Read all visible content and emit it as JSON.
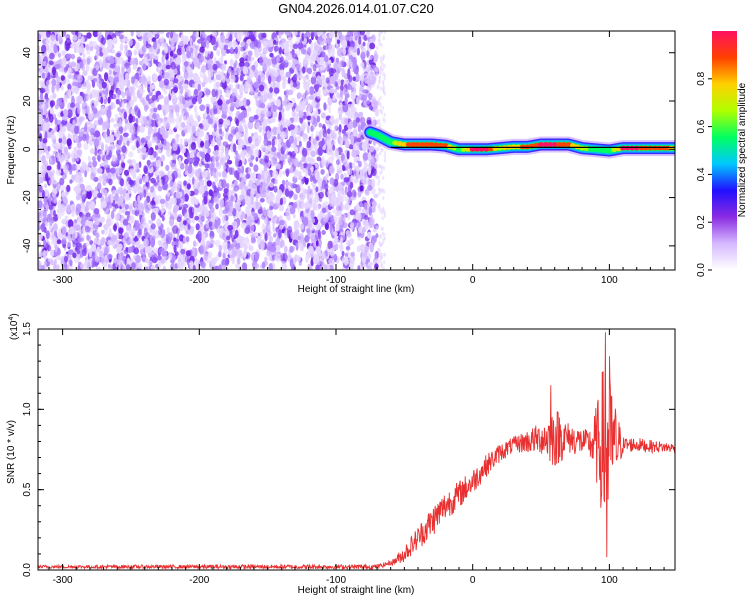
{
  "figure": {
    "title": "GN04.2026.014.01.07.C20"
  },
  "chart_data": [
    {
      "type": "heatmap",
      "name": "spectrogram",
      "xlabel": "Height of straight line (km)",
      "ylabel": "Frequency (Hz)",
      "xlim": [
        -318,
        148
      ],
      "ylim": [
        -50,
        49
      ],
      "xticks": [
        -300,
        -200,
        -100,
        0,
        100
      ],
      "yticks": [
        -40,
        -20,
        0,
        20,
        40
      ],
      "noise_region": {
        "x_range": [
          -318,
          -70
        ],
        "y_range": [
          -50,
          49
        ],
        "dominant_amplitude": [
          0.0,
          0.2
        ]
      },
      "signal_band": [
        {
          "x": -75,
          "y": 7,
          "amplitude": 0.55
        },
        {
          "x": -70,
          "y": 6,
          "amplitude": 0.5
        },
        {
          "x": -60,
          "y": 3,
          "amplitude": 0.6
        },
        {
          "x": -50,
          "y": 2,
          "amplitude": 0.8
        },
        {
          "x": -40,
          "y": 2,
          "amplitude": 0.9
        },
        {
          "x": -30,
          "y": 2,
          "amplitude": 0.85
        },
        {
          "x": -20,
          "y": 1.5,
          "amplitude": 0.9
        },
        {
          "x": -10,
          "y": 0,
          "amplitude": 0.6
        },
        {
          "x": 0,
          "y": 0,
          "amplitude": 0.95
        },
        {
          "x": 10,
          "y": 0,
          "amplitude": 0.95
        },
        {
          "x": 20,
          "y": 0.5,
          "amplitude": 0.7
        },
        {
          "x": 30,
          "y": 1,
          "amplitude": 0.8
        },
        {
          "x": 40,
          "y": 1,
          "amplitude": 0.85
        },
        {
          "x": 50,
          "y": 2,
          "amplitude": 0.95
        },
        {
          "x": 60,
          "y": 2,
          "amplitude": 0.95
        },
        {
          "x": 70,
          "y": 2,
          "amplitude": 0.85
        },
        {
          "x": 80,
          "y": 0.5,
          "amplitude": 0.7
        },
        {
          "x": 90,
          "y": 0,
          "amplitude": 0.5
        },
        {
          "x": 100,
          "y": -0.5,
          "amplitude": 0.6
        },
        {
          "x": 110,
          "y": 0.5,
          "amplitude": 0.95
        },
        {
          "x": 120,
          "y": 0.5,
          "amplitude": 0.95
        },
        {
          "x": 130,
          "y": 0.5,
          "amplitude": 0.9
        },
        {
          "x": 140,
          "y": 0.5,
          "amplitude": 0.85
        },
        {
          "x": 148,
          "y": 0.5,
          "amplitude": 0.8
        }
      ],
      "reference_line_y": 0.8
    },
    {
      "type": "colorbar",
      "name": "colorbar",
      "label": "Normalized spectral amplitude",
      "range": [
        0.0,
        1.0
      ],
      "ticks": [
        0.0,
        0.2,
        0.4,
        0.6,
        0.8
      ],
      "tick_labels": [
        "0.0",
        "0.2",
        "0.4",
        "0.6",
        "0.8"
      ],
      "colors": [
        "#ffffff",
        "#d5b8ff",
        "#8a2be2",
        "#2010ff",
        "#00c8ff",
        "#00ff60",
        "#b0ff00",
        "#ffd000",
        "#ff4000",
        "#ff1060"
      ]
    },
    {
      "type": "line",
      "name": "snr",
      "xlabel": "Height of straight line (km)",
      "ylabel": "SNR (10 * v/v)",
      "multiplier_label": "(x10",
      "multiplier_exp": "4",
      "multiplier_close": ")",
      "xlim": [
        -318,
        148
      ],
      "ylim": [
        0,
        1.5
      ],
      "xticks": [
        -300,
        -200,
        -100,
        0,
        100
      ],
      "yticks": [
        0.0,
        0.5,
        1.0,
        1.5
      ],
      "ytick_labels": [
        "0.0",
        "0.5",
        "1.0",
        "1.5"
      ],
      "series": [
        {
          "name": "SNR",
          "color": "#e83030",
          "envelope": [
            {
              "x": -318,
              "y": 0.02
            },
            {
              "x": -100,
              "y": 0.02
            },
            {
              "x": -70,
              "y": 0.02
            },
            {
              "x": -58,
              "y": 0.05
            },
            {
              "x": -50,
              "y": 0.1
            },
            {
              "x": -40,
              "y": 0.2
            },
            {
              "x": -30,
              "y": 0.3
            },
            {
              "x": -20,
              "y": 0.4
            },
            {
              "x": -10,
              "y": 0.47
            },
            {
              "x": 0,
              "y": 0.55
            },
            {
              "x": 10,
              "y": 0.65
            },
            {
              "x": 20,
              "y": 0.73
            },
            {
              "x": 30,
              "y": 0.78
            },
            {
              "x": 40,
              "y": 0.8
            },
            {
              "x": 50,
              "y": 0.82
            },
            {
              "x": 60,
              "y": 0.83
            },
            {
              "x": 70,
              "y": 0.82
            },
            {
              "x": 80,
              "y": 0.8
            },
            {
              "x": 90,
              "y": 0.78
            },
            {
              "x": 100,
              "y": 0.78
            },
            {
              "x": 110,
              "y": 0.78
            },
            {
              "x": 120,
              "y": 0.78
            },
            {
              "x": 130,
              "y": 0.77
            },
            {
              "x": 148,
              "y": 0.76
            }
          ],
          "noise_amplitude": [
            {
              "x": -318,
              "a": 0.01
            },
            {
              "x": -60,
              "a": 0.015
            },
            {
              "x": -50,
              "a": 0.05
            },
            {
              "x": -30,
              "a": 0.1
            },
            {
              "x": 0,
              "a": 0.08
            },
            {
              "x": 30,
              "a": 0.05
            },
            {
              "x": 50,
              "a": 0.1
            },
            {
              "x": 60,
              "a": 0.2
            },
            {
              "x": 70,
              "a": 0.1
            },
            {
              "x": 85,
              "a": 0.08
            },
            {
              "x": 92,
              "a": 0.3
            },
            {
              "x": 97,
              "a": 0.6
            },
            {
              "x": 102,
              "a": 0.35
            },
            {
              "x": 110,
              "a": 0.05
            },
            {
              "x": 148,
              "a": 0.03
            }
          ],
          "peaks": [
            {
              "x": 57,
              "y": 1.15
            },
            {
              "x": 97,
              "y": 1.48
            },
            {
              "x": 98,
              "y": 0.08
            },
            {
              "x": 100,
              "y": 1.33
            }
          ]
        }
      ]
    }
  ]
}
